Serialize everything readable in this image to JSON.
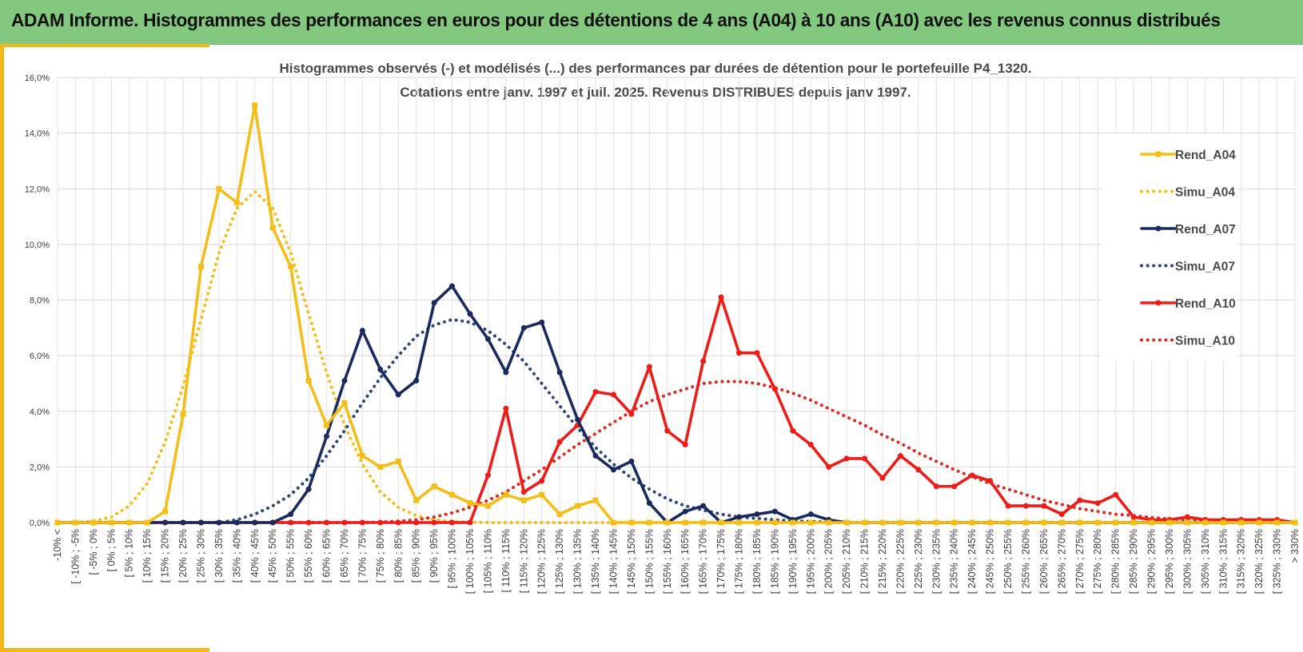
{
  "header": {
    "title": "ADAM Informe. Histogrammes des performances en euros pour des détentions de 4 ans (A04) à 10 ans (A10) avec les revenus connus distribués"
  },
  "colors": {
    "banner": "#82c87e",
    "accent": "#f2b81a",
    "A04": "#f5be16",
    "A07": "#1b2a5e",
    "A07_simu": "#2b4678",
    "A10": "#ee1b17",
    "A10_simu": "#e0281e"
  },
  "chart_data": {
    "type": "line",
    "title": "Histogrammes observés (-) et modélisés (...) des performances par durées de détention pour  le portefeuille P4_1320.",
    "subtitle": "Cotations entre janv. 1997 et juil. 2025. Revenus DISTRIBUES depuis janv 1997.",
    "xlabel": "",
    "ylabel": "",
    "y_format": "percent, comma decimal",
    "ylim": [
      0,
      16
    ],
    "y_ticks": [
      "0,0%",
      "2,0%",
      "4,0%",
      "6,0%",
      "8,0%",
      "10,0%",
      "12,0%",
      "14,0%",
      "16,0%"
    ],
    "grid": true,
    "legend_position": "right",
    "categories": [
      "-10% <",
      "[ -10% ; -5%",
      "[ -5% ; 0%",
      "[ 0% ; 5%",
      "[ 5% ; 10%",
      "[ 10% ; 15%",
      "[ 15% ; 20%",
      "[ 20% ; 25%",
      "[ 25% ; 30%",
      "[ 30% ; 35%",
      "[ 35% ; 40%",
      "[ 40% ; 45%",
      "[ 45% ; 50%",
      "[ 50% ; 55%",
      "[ 55% ; 60%",
      "[ 60% ; 65%",
      "[ 65% ; 70%",
      "[ 70% ; 75%",
      "[ 75% ; 80%",
      "[ 80% ; 85%",
      "[ 85% ; 90%",
      "[ 90% ; 95%",
      "[ 95% ; 100%",
      "[ 100% ; 105%",
      "[ 105% ; 110%",
      "[ 110% ; 115%",
      "[ 115% ; 120%",
      "[ 120% ; 125%",
      "[ 125% ; 130%",
      "[ 130% ; 135%",
      "[ 135% ; 140%",
      "[ 140% ; 145%",
      "[ 145% ; 150%",
      "[ 150% ; 155%",
      "[ 155% ; 160%",
      "[ 160% ; 165%",
      "[ 165% ; 170%",
      "[ 170% ; 175%",
      "[ 175% ; 180%",
      "[ 180% ; 185%",
      "[ 185% ; 190%",
      "[ 190% ; 195%",
      "[ 195% ; 200%",
      "[ 200% ; 205%",
      "[ 205% ; 210%",
      "[ 210% ; 215%",
      "[ 215% ; 220%",
      "[ 220% ; 225%",
      "[ 225% ; 230%",
      "[ 230% ; 235%",
      "[ 235% ; 240%",
      "[ 240% ; 245%",
      "[ 245% ; 250%",
      "[ 250% ; 255%",
      "[ 255% ; 260%",
      "[ 260% ; 265%",
      "[ 265% ; 270%",
      "[ 270% ; 275%",
      "[ 275% ; 280%",
      "[ 280% ; 285%",
      "[ 285% ; 290%",
      "[ 290% ; 295%",
      "[ 295% ; 300%",
      "[ 300% ; 305%",
      "[ 305% ; 310%",
      "[ 310% ; 315%",
      "[ 315% ; 320%",
      "[ 320% ; 325%",
      "[ 325% ; 330%",
      "> 330%"
    ],
    "series": [
      {
        "name": "Rend_A04",
        "style": "solid",
        "marker": "square",
        "color": "#f5be16",
        "values": [
          0,
          0,
          0,
          0,
          0,
          0,
          0.4,
          3.9,
          9.2,
          12.0,
          11.5,
          15.0,
          10.6,
          9.2,
          5.1,
          3.5,
          4.3,
          2.4,
          2.0,
          2.2,
          0.8,
          1.3,
          1.0,
          0.7,
          0.6,
          1.0,
          0.8,
          1.0,
          0.3,
          0.6,
          0.8,
          0,
          0,
          0,
          0,
          0,
          0,
          0,
          0,
          0,
          0,
          0,
          0,
          0,
          0,
          0,
          0,
          0,
          0,
          0,
          0,
          0,
          0,
          0,
          0,
          0,
          0,
          0,
          0,
          0,
          0,
          0,
          0,
          0,
          0,
          0,
          0,
          0,
          0,
          0
        ]
      },
      {
        "name": "Simu_A04",
        "style": "dotted",
        "marker": "none",
        "color": "#f5be16",
        "values": [
          0,
          0,
          0.05,
          0.2,
          0.6,
          1.4,
          2.9,
          4.9,
          7.3,
          9.7,
          11.3,
          11.9,
          11.3,
          9.7,
          7.5,
          5.4,
          3.5,
          2.1,
          1.1,
          0.55,
          0.25,
          0.1,
          0.04,
          0.02,
          0,
          0,
          0,
          0,
          0,
          0,
          0,
          0,
          0,
          0,
          0,
          0,
          0,
          0,
          0,
          0,
          0,
          0,
          0,
          0,
          0,
          0,
          0,
          0,
          0,
          0,
          0,
          0,
          0,
          0,
          0,
          0,
          0,
          0,
          0,
          0,
          0,
          0,
          0,
          0,
          0,
          0,
          0,
          0,
          0,
          0
        ]
      },
      {
        "name": "Rend_A07",
        "style": "solid",
        "marker": "circle",
        "color": "#1b2a5e",
        "values": [
          0,
          0,
          0,
          0,
          0,
          0,
          0,
          0,
          0,
          0,
          0,
          0,
          0,
          0.3,
          1.2,
          3.1,
          5.1,
          6.9,
          5.5,
          4.6,
          5.1,
          7.9,
          8.5,
          7.5,
          6.6,
          5.4,
          7.0,
          7.2,
          5.4,
          3.7,
          2.4,
          1.9,
          2.2,
          0.7,
          0,
          0.4,
          0.6,
          0,
          0.2,
          0.3,
          0.4,
          0.1,
          0.3,
          0.1,
          0,
          0,
          0,
          0,
          0,
          0,
          0,
          0,
          0,
          0,
          0,
          0,
          0,
          0,
          0,
          0,
          0,
          0,
          0,
          0,
          0,
          0,
          0,
          0,
          0,
          0
        ]
      },
      {
        "name": "Simu_A07",
        "style": "dotted",
        "marker": "none",
        "color": "#2b4678",
        "values": [
          0,
          0,
          0,
          0,
          0,
          0,
          0,
          0,
          0,
          0,
          0.1,
          0.3,
          0.6,
          1.0,
          1.6,
          2.4,
          3.3,
          4.3,
          5.2,
          6.0,
          6.7,
          7.1,
          7.3,
          7.2,
          6.9,
          6.4,
          5.8,
          5.0,
          4.2,
          3.4,
          2.7,
          2.1,
          1.6,
          1.2,
          0.85,
          0.6,
          0.45,
          0.3,
          0.2,
          0.15,
          0.1,
          0.06,
          0.04,
          0.02,
          0,
          0,
          0,
          0,
          0,
          0,
          0,
          0,
          0,
          0,
          0,
          0,
          0,
          0,
          0,
          0,
          0,
          0,
          0,
          0,
          0,
          0,
          0,
          0,
          0,
          0
        ]
      },
      {
        "name": "Rend_A10",
        "style": "solid",
        "marker": "circle",
        "color": "#ee1b17",
        "values": [
          0,
          0,
          0,
          0,
          0,
          0,
          0,
          0,
          0,
          0,
          0,
          0,
          0,
          0,
          0,
          0,
          0,
          0,
          0,
          0,
          0,
          0,
          0,
          0,
          1.7,
          4.1,
          1.1,
          1.5,
          2.9,
          3.5,
          4.7,
          4.6,
          3.9,
          5.6,
          3.3,
          2.8,
          5.8,
          8.1,
          6.1,
          6.1,
          4.8,
          3.3,
          2.8,
          2.0,
          2.3,
          2.3,
          1.6,
          2.4,
          1.9,
          1.3,
          1.3,
          1.7,
          1.5,
          0.6,
          0.6,
          0.6,
          0.3,
          0.8,
          0.7,
          1.0,
          0.2,
          0.1,
          0.1,
          0.2,
          0.1,
          0.1,
          0.1,
          0.1,
          0.1,
          0
        ]
      },
      {
        "name": "Simu_A10",
        "style": "dotted",
        "marker": "none",
        "color": "#e0281e",
        "values": [
          0,
          0,
          0,
          0,
          0,
          0,
          0,
          0,
          0,
          0,
          0,
          0,
          0,
          0,
          0,
          0,
          0,
          0,
          0.02,
          0.05,
          0.1,
          0.2,
          0.35,
          0.55,
          0.8,
          1.1,
          1.5,
          1.9,
          2.35,
          2.8,
          3.2,
          3.6,
          4.0,
          4.35,
          4.6,
          4.8,
          5.0,
          5.07,
          5.07,
          5.0,
          4.85,
          4.65,
          4.4,
          4.1,
          3.8,
          3.5,
          3.15,
          2.85,
          2.5,
          2.2,
          1.9,
          1.65,
          1.4,
          1.2,
          1.0,
          0.8,
          0.65,
          0.5,
          0.4,
          0.3,
          0.25,
          0.18,
          0.13,
          0.1,
          0.07,
          0.05,
          0.03,
          0.02,
          0.01,
          0
        ]
      }
    ]
  }
}
